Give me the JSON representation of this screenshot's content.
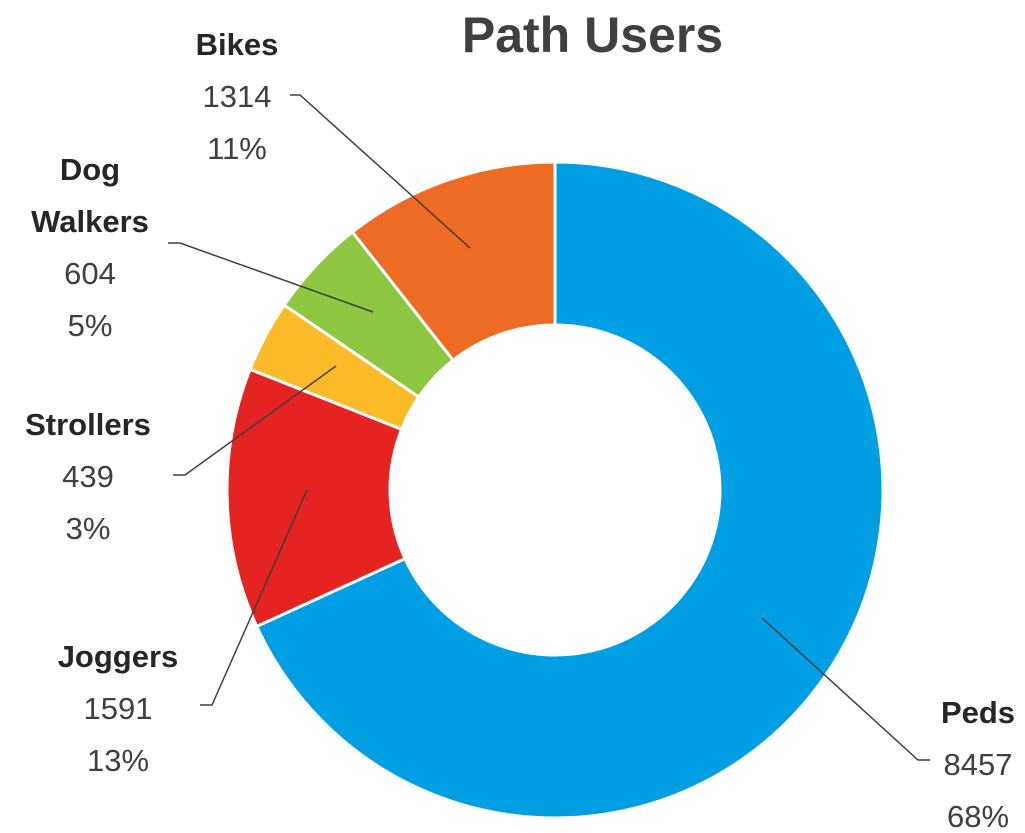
{
  "chart_data": {
    "type": "donut",
    "title": "Path Users",
    "categories": [
      "Peds",
      "Joggers",
      "Strollers",
      "Dog Walkers",
      "Bikes"
    ],
    "values": [
      8457,
      1591,
      439,
      604,
      1314
    ],
    "percent_labels": [
      "68%",
      "13%",
      "3%",
      "5%",
      "11%"
    ],
    "colors": [
      "#009FE3",
      "#E52421",
      "#FBBA27",
      "#8DC63F",
      "#EE6B24"
    ]
  }
}
